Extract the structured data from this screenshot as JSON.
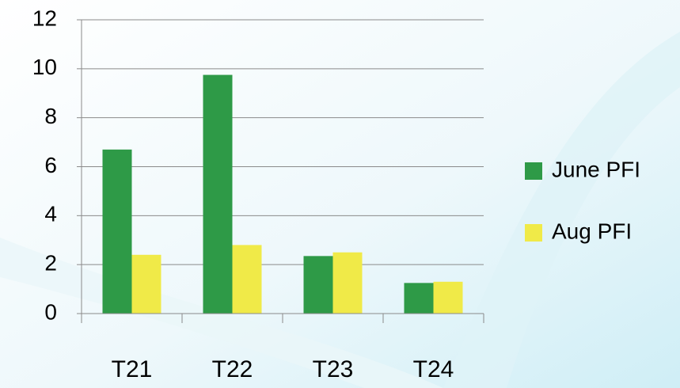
{
  "chart_data": {
    "type": "bar",
    "categories": [
      "T21",
      "T22",
      "T23",
      "T24"
    ],
    "series": [
      {
        "name": "June PFI",
        "color": "#2e9a47",
        "values": [
          6.7,
          9.75,
          2.35,
          1.25
        ]
      },
      {
        "name": "Aug PFI",
        "color": "#f0ea48",
        "values": [
          2.4,
          2.8,
          2.5,
          1.3
        ]
      }
    ],
    "ylim": [
      0,
      12
    ],
    "yticks": [
      0,
      2,
      4,
      6,
      8,
      10,
      12
    ],
    "grid": true,
    "legend": "right"
  }
}
